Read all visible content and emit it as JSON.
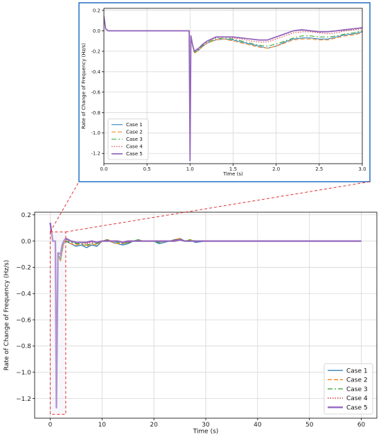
{
  "chart_data": [
    {
      "id": "inset",
      "type": "line",
      "xlabel": "Time (s)",
      "ylabel": "Rate of Change of Frequency (Hz/s)",
      "xlim": [
        0.0,
        3.0
      ],
      "ylim": [
        -1.3,
        0.22
      ],
      "xticks": [
        0.0,
        0.5,
        1.0,
        1.5,
        2.0,
        2.5,
        3.0
      ],
      "xtick_labels": [
        "0.0",
        "0.5",
        "1.0",
        "1.5",
        "2.0",
        "2.5",
        "3.0"
      ],
      "yticks": [
        -1.2,
        -1.0,
        -0.8,
        -0.6,
        -0.4,
        -0.2,
        0.0,
        0.2
      ],
      "ytick_labels": [
        "-1.2",
        "-1.0",
        "-0.8",
        "-0.6",
        "-0.4",
        "-0.2",
        "0.0",
        "0.2"
      ],
      "grid": true,
      "legend_position": "lower-left",
      "series": [
        {
          "name": "Case 1",
          "x": [
            0,
            0.02,
            0.05,
            0.1,
            0.5,
            0.9,
            0.99,
            1.0,
            1.01,
            1.03,
            1.05,
            1.1,
            1.15,
            1.2,
            1.3,
            1.4,
            1.5,
            1.6,
            1.7,
            1.8,
            1.9,
            2.0,
            2.1,
            2.2,
            2.3,
            2.4,
            2.5,
            2.6,
            2.7,
            2.8,
            2.9,
            3.0
          ],
          "y": [
            0.13,
            0.02,
            0.0,
            0.0,
            0.0,
            0.0,
            0.0,
            -1.27,
            -0.05,
            -0.15,
            -0.21,
            -0.19,
            -0.15,
            -0.12,
            -0.09,
            -0.08,
            -0.09,
            -0.11,
            -0.13,
            -0.15,
            -0.17,
            -0.15,
            -0.11,
            -0.08,
            -0.07,
            -0.07,
            -0.08,
            -0.08,
            -0.06,
            -0.04,
            -0.03,
            -0.01
          ]
        },
        {
          "name": "Case 2",
          "x": [
            0,
            0.02,
            0.05,
            0.1,
            0.5,
            0.9,
            0.99,
            1.0,
            1.01,
            1.03,
            1.05,
            1.1,
            1.15,
            1.2,
            1.3,
            1.4,
            1.5,
            1.6,
            1.7,
            1.8,
            1.9,
            2.0,
            2.1,
            2.2,
            2.3,
            2.4,
            2.5,
            2.6,
            2.7,
            2.8,
            2.9,
            3.0
          ],
          "y": [
            0.13,
            0.02,
            0.0,
            0.0,
            0.0,
            0.0,
            0.0,
            -1.27,
            -0.05,
            -0.15,
            -0.22,
            -0.19,
            -0.15,
            -0.12,
            -0.09,
            -0.08,
            -0.1,
            -0.12,
            -0.14,
            -0.16,
            -0.17,
            -0.15,
            -0.12,
            -0.09,
            -0.08,
            -0.08,
            -0.09,
            -0.09,
            -0.07,
            -0.05,
            -0.04,
            -0.02
          ]
        },
        {
          "name": "Case 3",
          "x": [
            0,
            0.02,
            0.05,
            0.1,
            0.5,
            0.9,
            0.99,
            1.0,
            1.01,
            1.03,
            1.05,
            1.1,
            1.15,
            1.2,
            1.3,
            1.4,
            1.5,
            1.6,
            1.7,
            1.8,
            1.9,
            2.0,
            2.1,
            2.2,
            2.3,
            2.4,
            2.5,
            2.6,
            2.7,
            2.8,
            2.9,
            3.0
          ],
          "y": [
            0.13,
            0.02,
            0.0,
            0.0,
            0.0,
            0.0,
            0.0,
            -1.27,
            -0.05,
            -0.15,
            -0.21,
            -0.18,
            -0.14,
            -0.11,
            -0.08,
            -0.07,
            -0.08,
            -0.1,
            -0.12,
            -0.14,
            -0.15,
            -0.13,
            -0.1,
            -0.07,
            -0.05,
            -0.05,
            -0.06,
            -0.06,
            -0.05,
            -0.03,
            -0.02,
            0.0
          ]
        },
        {
          "name": "Case 4",
          "x": [
            0,
            0.02,
            0.05,
            0.1,
            0.5,
            0.9,
            0.99,
            1.0,
            1.01,
            1.03,
            1.05,
            1.1,
            1.15,
            1.2,
            1.3,
            1.4,
            1.5,
            1.6,
            1.7,
            1.8,
            1.9,
            2.0,
            2.1,
            2.2,
            2.3,
            2.4,
            2.5,
            2.6,
            2.7,
            2.8,
            2.9,
            3.0
          ],
          "y": [
            0.13,
            0.02,
            0.0,
            0.0,
            0.0,
            0.0,
            0.0,
            -1.27,
            -0.05,
            -0.14,
            -0.2,
            -0.17,
            -0.13,
            -0.1,
            -0.07,
            -0.06,
            -0.07,
            -0.08,
            -0.1,
            -0.11,
            -0.11,
            -0.08,
            -0.05,
            -0.02,
            -0.01,
            -0.01,
            -0.02,
            -0.03,
            -0.02,
            0.0,
            0.01,
            0.02
          ]
        },
        {
          "name": "Case 5",
          "x": [
            0,
            0.02,
            0.05,
            0.1,
            0.5,
            0.9,
            0.99,
            1.0,
            1.01,
            1.03,
            1.05,
            1.1,
            1.15,
            1.2,
            1.3,
            1.4,
            1.5,
            1.6,
            1.7,
            1.8,
            1.9,
            2.0,
            2.1,
            2.2,
            2.3,
            2.4,
            2.5,
            2.6,
            2.7,
            2.8,
            2.9,
            3.0
          ],
          "y": [
            0.14,
            0.02,
            0.0,
            0.0,
            0.0,
            0.0,
            0.0,
            -1.27,
            -0.05,
            -0.14,
            -0.2,
            -0.17,
            -0.13,
            -0.1,
            -0.06,
            -0.06,
            -0.06,
            -0.07,
            -0.08,
            -0.09,
            -0.09,
            -0.06,
            -0.03,
            0.0,
            0.01,
            0.0,
            -0.01,
            -0.01,
            0.0,
            0.01,
            0.02,
            0.03
          ]
        }
      ]
    },
    {
      "id": "main",
      "type": "line",
      "xlabel": "Time (s)",
      "ylabel": "Rate of Change of Frequency (Hz/s)",
      "xlim": [
        -3.0,
        63.0
      ],
      "ylim": [
        -1.35,
        0.22
      ],
      "xticks": [
        0,
        10,
        20,
        30,
        40,
        50,
        60
      ],
      "xtick_labels": [
        "0",
        "10",
        "20",
        "30",
        "40",
        "50",
        "60"
      ],
      "yticks": [
        -1.2,
        -1.0,
        -0.8,
        -0.6,
        -0.4,
        -0.2,
        0.0,
        0.2
      ],
      "ytick_labels": [
        "−1.2",
        "−1.0",
        "−0.8",
        "−0.6",
        "−0.4",
        "−0.2",
        "0.0",
        "0.2"
      ],
      "grid": true,
      "legend_position": "lower-right",
      "zoom_region": {
        "x": [
          0,
          3
        ],
        "y": [
          -1.32,
          0.07
        ]
      },
      "series": [
        {
          "name": "Case 1",
          "x": [
            0,
            0.5,
            1.0,
            1.2,
            1.5,
            2.0,
            2.3,
            2.6,
            3.0,
            4,
            5,
            6,
            7,
            8,
            9,
            10,
            11,
            12,
            13,
            14,
            15,
            16,
            17,
            18,
            19,
            20,
            21,
            22,
            23,
            24,
            25,
            26,
            27,
            28,
            30,
            35,
            40,
            45,
            50,
            55,
            60
          ],
          "y": [
            0.13,
            0.0,
            0.0,
            -1.27,
            -0.1,
            -0.15,
            -0.08,
            -0.02,
            0.0,
            -0.02,
            -0.04,
            -0.03,
            -0.05,
            -0.03,
            -0.04,
            0.0,
            0.01,
            -0.01,
            -0.02,
            -0.03,
            -0.02,
            0.0,
            0.01,
            0.0,
            0.0,
            0.0,
            -0.02,
            -0.01,
            0.0,
            0.01,
            0.02,
            0.0,
            0.01,
            -0.01,
            0.0,
            0.0,
            0.0,
            0.0,
            0.0,
            0.0,
            0.0
          ]
        },
        {
          "name": "Case 2",
          "x": [
            0,
            0.5,
            1.0,
            1.2,
            1.5,
            2.0,
            2.3,
            2.6,
            3.0,
            4,
            5,
            6,
            7,
            8,
            9,
            10,
            11,
            12,
            13,
            14,
            15,
            16,
            17,
            18,
            19,
            20,
            21,
            22,
            23,
            24,
            25,
            26,
            27,
            28,
            30,
            35,
            40,
            45,
            50,
            55,
            60
          ],
          "y": [
            0.13,
            0.0,
            0.0,
            -1.27,
            -0.1,
            -0.16,
            -0.08,
            -0.02,
            0.0,
            -0.02,
            -0.03,
            -0.02,
            -0.04,
            -0.02,
            -0.03,
            0.0,
            0.01,
            -0.01,
            -0.02,
            -0.02,
            -0.01,
            0.0,
            0.01,
            0.0,
            0.0,
            0.0,
            -0.01,
            0.0,
            0.0,
            0.01,
            0.02,
            0.0,
            0.01,
            0.0,
            0.0,
            0.0,
            0.0,
            0.0,
            0.0,
            0.0,
            0.0
          ]
        },
        {
          "name": "Case 3",
          "x": [
            0,
            0.5,
            1.0,
            1.2,
            1.5,
            2.0,
            2.3,
            2.6,
            3.0,
            4,
            5,
            6,
            7,
            8,
            9,
            10,
            11,
            12,
            13,
            14,
            15,
            16,
            17,
            18,
            19,
            20,
            21,
            22,
            23,
            24,
            25,
            26,
            27,
            28,
            30,
            35,
            40,
            45,
            50,
            55,
            60
          ],
          "y": [
            0.13,
            0.0,
            0.0,
            -1.27,
            -0.1,
            -0.14,
            -0.07,
            -0.02,
            0.0,
            -0.01,
            -0.02,
            -0.02,
            -0.03,
            -0.02,
            -0.02,
            0.0,
            0.01,
            0.0,
            -0.01,
            -0.02,
            -0.01,
            0.0,
            0.01,
            0.0,
            0.0,
            0.0,
            -0.01,
            0.0,
            0.0,
            0.01,
            0.01,
            0.0,
            0.01,
            0.0,
            0.0,
            0.0,
            0.0,
            0.0,
            0.0,
            0.0,
            0.0
          ]
        },
        {
          "name": "Case 4",
          "x": [
            0,
            0.5,
            1.0,
            1.2,
            1.5,
            2.0,
            2.3,
            2.6,
            3.0,
            4,
            5,
            6,
            7,
            8,
            9,
            10,
            11,
            12,
            13,
            14,
            15,
            16,
            17,
            18,
            19,
            20,
            21,
            22,
            23,
            24,
            25,
            26,
            27,
            28,
            30,
            35,
            40,
            45,
            50,
            55,
            60
          ],
          "y": [
            0.13,
            0.0,
            0.0,
            -1.27,
            -0.09,
            -0.12,
            -0.05,
            -0.01,
            0.01,
            0.0,
            -0.01,
            -0.01,
            -0.02,
            -0.01,
            -0.01,
            0.0,
            0.01,
            0.0,
            0.0,
            -0.01,
            -0.01,
            0.0,
            0.0,
            0.0,
            0.0,
            0.0,
            0.0,
            0.0,
            0.0,
            0.01,
            0.01,
            0.0,
            0.0,
            0.0,
            0.0,
            0.0,
            0.0,
            0.0,
            0.0,
            0.0,
            0.0
          ]
        },
        {
          "name": "Case 5",
          "x": [
            0,
            0.5,
            1.0,
            1.2,
            1.5,
            2.0,
            2.3,
            2.6,
            3.0,
            4,
            5,
            6,
            7,
            8,
            9,
            10,
            11,
            12,
            13,
            14,
            15,
            16,
            17,
            18,
            19,
            20,
            21,
            22,
            23,
            24,
            25,
            26,
            27,
            28,
            30,
            35,
            40,
            45,
            50,
            55,
            60
          ],
          "y": [
            0.14,
            0.0,
            0.0,
            -1.27,
            -0.09,
            -0.1,
            -0.03,
            0.0,
            0.02,
            0.0,
            -0.01,
            -0.01,
            -0.01,
            0.0,
            -0.01,
            0.0,
            0.0,
            0.0,
            0.0,
            -0.01,
            0.0,
            0.0,
            0.0,
            0.0,
            0.0,
            0.0,
            0.0,
            0.0,
            0.0,
            0.0,
            0.01,
            0.0,
            0.0,
            0.0,
            0.0,
            0.0,
            0.0,
            0.0,
            0.0,
            0.0,
            0.0
          ]
        }
      ]
    }
  ],
  "styles": {
    "series": [
      {
        "color": "#1f77b4",
        "dash": ""
      },
      {
        "color": "#ff7f0e",
        "dash": "6,3"
      },
      {
        "color": "#2ca02c",
        "dash": "7,3,2,3"
      },
      {
        "color": "#d62728",
        "dash": "1.5,2"
      },
      {
        "color": "#9467bd",
        "dash": ""
      }
    ],
    "inset_border_color": "#1f6fc4",
    "zoom_color": "#e03030"
  }
}
